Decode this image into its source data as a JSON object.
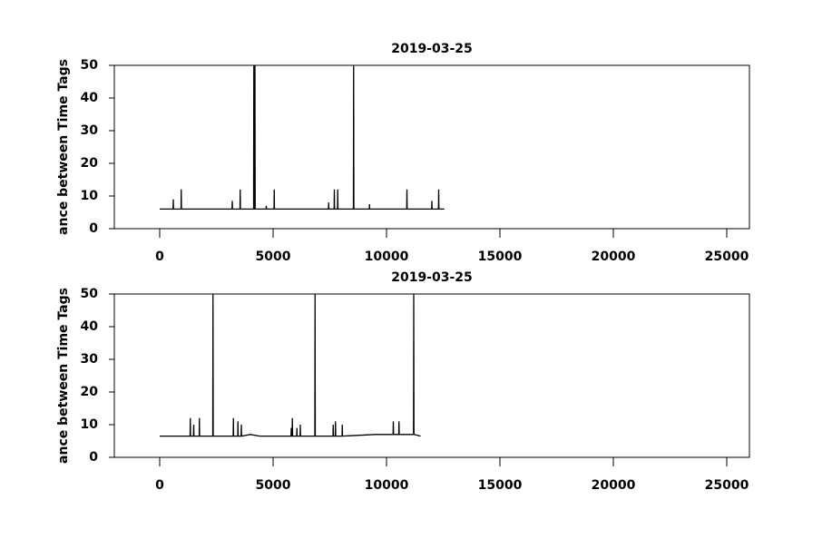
{
  "chart_data": [
    {
      "type": "line",
      "title": "2019-03-25",
      "y_label": "ance between Time Tags",
      "xlim": [
        -2000,
        26000
      ],
      "xticks": [
        0,
        5000,
        10000,
        15000,
        20000,
        25000
      ],
      "ylim": [
        0,
        50
      ],
      "yticks": [
        0,
        10,
        20,
        30,
        40,
        50
      ],
      "color": "#000000",
      "x": [
        0,
        590,
        600,
        610,
        940,
        950,
        960,
        3190,
        3200,
        3210,
        3540,
        3550,
        3560,
        4140,
        4150,
        4160,
        4190,
        4200,
        4210,
        4690,
        4700,
        4710,
        5040,
        5050,
        5060,
        7440,
        7450,
        7460,
        7690,
        7700,
        7710,
        7840,
        7850,
        7860,
        8540,
        8550,
        8560,
        9240,
        9250,
        9260,
        10890,
        10900,
        10910,
        11990,
        12000,
        12010,
        12290,
        12300,
        12310,
        12550
      ],
      "y": [
        6,
        6,
        9,
        6,
        6,
        12,
        6,
        6,
        8.5,
        6,
        6,
        12,
        6,
        6,
        50,
        6,
        6,
        50,
        6,
        6,
        7,
        6,
        6,
        12,
        6,
        6,
        8,
        6,
        6,
        12,
        6,
        6,
        12,
        6,
        6,
        50,
        6,
        6,
        7.5,
        6,
        6,
        12,
        6,
        6,
        8.5,
        6,
        6,
        12,
        6,
        6
      ]
    },
    {
      "type": "line",
      "title": "2019-03-25",
      "y_label": "ance between Time Tags",
      "xlim": [
        -2000,
        26000
      ],
      "xticks": [
        0,
        5000,
        10000,
        15000,
        20000,
        25000
      ],
      "ylim": [
        0,
        50
      ],
      "yticks": [
        0,
        10,
        20,
        30,
        40,
        50
      ],
      "color": "#000000",
      "x": [
        0,
        1340,
        1350,
        1360,
        1490,
        1500,
        1510,
        1740,
        1750,
        1760,
        2340,
        2350,
        2360,
        3240,
        3250,
        3260,
        3440,
        3450,
        3460,
        3590,
        3600,
        3610,
        4000,
        4400,
        5790,
        5800,
        5810,
        5840,
        5850,
        5860,
        6040,
        6050,
        6060,
        6190,
        6200,
        6210,
        6840,
        6850,
        6860,
        7640,
        7650,
        7660,
        7740,
        7750,
        7760,
        8040,
        8050,
        8060,
        9500,
        10290,
        10300,
        10310,
        10540,
        10550,
        10560,
        11190,
        11200,
        11210,
        11500
      ],
      "y": [
        6.5,
        6.5,
        12,
        6.5,
        6.5,
        10,
        6.5,
        6.5,
        12,
        6.5,
        6.5,
        50,
        6.5,
        6.5,
        12,
        6.5,
        6.5,
        11,
        6.5,
        6.5,
        10,
        6.5,
        7,
        6.5,
        6.5,
        9,
        6.5,
        6.5,
        12,
        6.5,
        6.5,
        9,
        6.5,
        6.5,
        10,
        6.5,
        6.5,
        50,
        6.5,
        6.5,
        10,
        6.5,
        6.5,
        11,
        6.5,
        6.5,
        10,
        6.5,
        7,
        7,
        11,
        7,
        7,
        11,
        7,
        7,
        50,
        7,
        6.5
      ]
    }
  ]
}
